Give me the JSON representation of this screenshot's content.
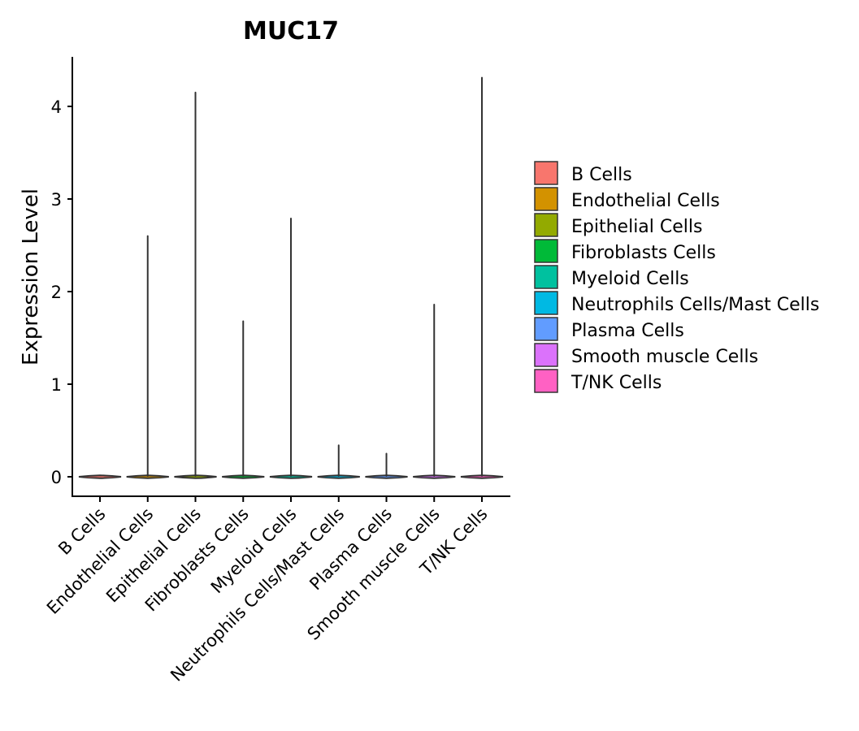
{
  "chart_data": {
    "type": "violin",
    "title": "MUC17",
    "xlabel": "",
    "ylabel": "Expression Level",
    "ylim": [
      -0.2,
      4.5
    ],
    "yticks": [
      0,
      1,
      2,
      3,
      4
    ],
    "ytick_labels": [
      "0",
      "1",
      "2",
      "3",
      "4"
    ],
    "categories": [
      "B Cells",
      "Endothelial Cells",
      "Epithelial Cells",
      "Fibroblasts Cells",
      "Myeloid Cells",
      "Neutrophils Cells/Mast Cells",
      "Plasma Cells",
      "Smooth muscle Cells",
      "T/NK Cells"
    ],
    "max_values": [
      0.0,
      2.6,
      4.15,
      1.68,
      2.79,
      0.34,
      0.25,
      1.86,
      4.31
    ],
    "colors": [
      "#F8766D",
      "#D39200",
      "#93AA00",
      "#00BA38",
      "#00C19F",
      "#00B9E3",
      "#619CFF",
      "#DB72FB",
      "#FF61C3"
    ],
    "legend": {
      "position": "right",
      "entries": [
        "B Cells",
        "Endothelial Cells",
        "Epithelial Cells",
        "Fibroblasts Cells",
        "Myeloid Cells",
        "Neutrophils Cells/Mast Cells",
        "Plasma Cells",
        "Smooth muscle Cells",
        "T/NK Cells"
      ]
    }
  }
}
